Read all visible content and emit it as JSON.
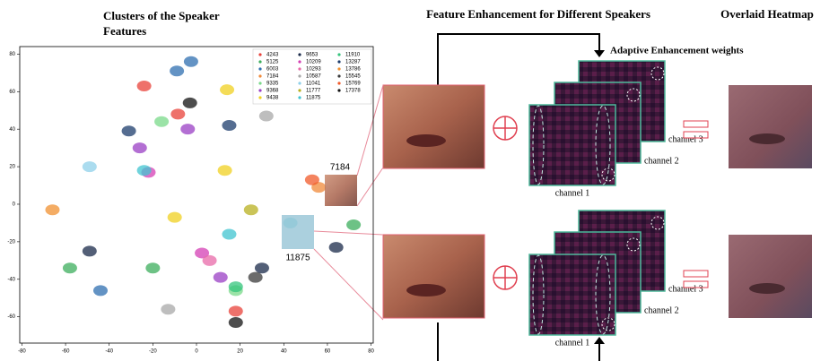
{
  "chart_data": {
    "type": "scatter",
    "title": "Clusters of the Speaker Features",
    "xlim": [
      -81,
      81
    ],
    "ylim": [
      -74,
      84
    ],
    "xticks": [
      -80,
      -60,
      -40,
      -20,
      0,
      20,
      40,
      60,
      80
    ],
    "yticks": [
      -60,
      -40,
      -20,
      0,
      20,
      40,
      60,
      80
    ],
    "annotations": [
      "7184",
      "11875"
    ],
    "series": [
      {
        "name": "4243",
        "color": "#e8413a",
        "x": [
          -24,
          -8.5,
          18
        ],
        "y": [
          63,
          48,
          -57
        ]
      },
      {
        "name": "5125",
        "color": "#3cae5c",
        "x": [
          -58,
          -20,
          72
        ],
        "y": [
          -34,
          -34,
          -11
        ]
      },
      {
        "name": "6003",
        "color": "#2f6fb0",
        "x": [
          -2.5,
          -9,
          -44
        ],
        "y": [
          76,
          71,
          -46
        ]
      },
      {
        "name": "7184",
        "color": "#f08a3a",
        "x": [
          56
        ],
        "y": [
          9
        ]
      },
      {
        "name": "9335",
        "color": "#7ad98a",
        "x": [
          -16,
          18
        ],
        "y": [
          44,
          -46
        ]
      },
      {
        "name": "9368",
        "color": "#9a3fc4",
        "x": [
          -26,
          11,
          -4
        ],
        "y": [
          30,
          -39,
          40
        ]
      },
      {
        "name": "9438",
        "color": "#f0d020",
        "x": [
          13,
          -10,
          14
        ],
        "y": [
          18,
          -7,
          61
        ]
      },
      {
        "name": "9653",
        "color": "#1a2a4a",
        "x": [
          -49,
          64,
          30
        ],
        "y": [
          -25,
          -23,
          -34
        ]
      },
      {
        "name": "10209",
        "color": "#d43fb4",
        "x": [
          -22,
          2.5
        ],
        "y": [
          17,
          -26
        ]
      },
      {
        "name": "10293",
        "color": "#e86aa8",
        "x": [
          6
        ],
        "y": [
          -30
        ]
      },
      {
        "name": "10587",
        "color": "#a8a8a8",
        "x": [
          32,
          -13
        ],
        "y": [
          47,
          -56
        ]
      },
      {
        "name": "11041",
        "color": "#8fd0ea",
        "x": [
          -49
        ],
        "y": [
          20
        ]
      },
      {
        "name": "11777",
        "color": "#b8b020",
        "x": [
          25
        ],
        "y": [
          -3
        ]
      },
      {
        "name": "11875",
        "color": "#40c4d0",
        "x": [
          -24,
          15,
          43
        ],
        "y": [
          18,
          -16,
          -10
        ]
      },
      {
        "name": "11910",
        "color": "#34c47c",
        "x": [
          18
        ],
        "y": [
          -44
        ]
      },
      {
        "name": "13287",
        "color": "#1c3c6c",
        "x": [
          -31,
          15
        ],
        "y": [
          39,
          42
        ]
      },
      {
        "name": "13786",
        "color": "#f09030",
        "x": [
          -66
        ],
        "y": [
          -3
        ]
      },
      {
        "name": "15545",
        "color": "#3a3a3a",
        "x": [
          27
        ],
        "y": [
          -39
        ]
      },
      {
        "name": "15769",
        "color": "#f05a2a",
        "x": [
          53
        ],
        "y": [
          13
        ]
      },
      {
        "name": "17378",
        "color": "#111111",
        "x": [
          -3,
          18
        ],
        "y": [
          54,
          -63
        ]
      }
    ]
  },
  "figure": {
    "middle_title": "Feature Enhancement for Different Speakers",
    "right_title": "Overlaid Heatmap",
    "weights_label": "Adaptive Enhancement weights",
    "panels": [
      {
        "channels": [
          "channel 1",
          "channel 2",
          "channel 3"
        ]
      },
      {
        "channels": [
          "channel 1",
          "channel 2",
          "channel 3"
        ]
      }
    ]
  }
}
